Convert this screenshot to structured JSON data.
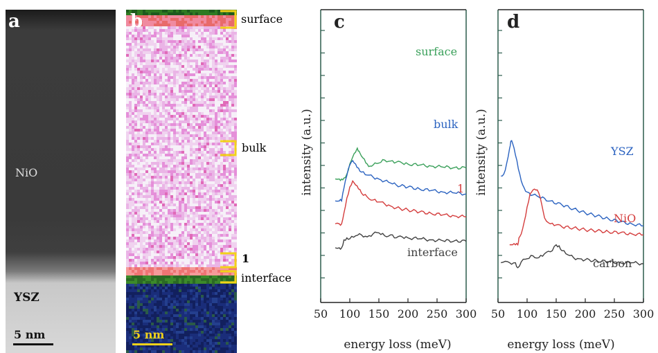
{
  "panels": {
    "a": {
      "letter": "a",
      "labels": {
        "nio": "NiO",
        "ysz": "YSZ",
        "scale": "5 nm"
      }
    },
    "b": {
      "letter": "b",
      "scale": "5 nm",
      "markers": {
        "surface": "surface",
        "bulk": "bulk",
        "one": "1",
        "interface": "interface"
      }
    },
    "c": {
      "letter": "c",
      "curve_labels": {
        "surface": "surface",
        "bulk": "bulk",
        "one": "1",
        "interface": "interface"
      }
    },
    "d": {
      "letter": "d",
      "curve_labels": {
        "ysz": "YSZ",
        "nio": "NiO",
        "carbon": "carbon"
      }
    }
  },
  "axes": {
    "ylabel": "intensity (a.u.)",
    "xlabel": "energy loss (meV)"
  },
  "colors": {
    "surface": "#3aa05a",
    "bulk": "#2a62c0",
    "one": "#d43c3c",
    "interface": "#404040",
    "marker": "#f2d21a",
    "axis": "#2c5c4c"
  },
  "chart_data": [
    {
      "type": "line",
      "panel": "c",
      "xlabel": "energy loss (meV)",
      "ylabel": "intensity (a.u.)",
      "xlim": [
        50,
        300
      ],
      "xticks": [
        50,
        100,
        150,
        200,
        250,
        300
      ],
      "series": [
        {
          "name": "surface",
          "x": [
            75,
            82,
            86,
            90,
            95,
            100,
            105,
            110,
            113,
            116,
            120,
            125,
            130,
            135,
            140,
            150,
            160,
            170,
            180,
            190,
            200,
            220,
            240,
            260,
            280,
            300
          ],
          "y": [
            0.88,
            0.88,
            0.88,
            0.9,
            0.98,
            1.18,
            1.32,
            1.42,
            1.5,
            1.44,
            1.34,
            1.28,
            1.18,
            1.14,
            1.16,
            1.2,
            1.26,
            1.24,
            1.22,
            1.2,
            1.18,
            1.16,
            1.14,
            1.12,
            1.11,
            1.1
          ]
        },
        {
          "name": "bulk",
          "x": [
            75,
            82,
            86,
            90,
            95,
            100,
            105,
            110,
            115,
            120,
            130,
            140,
            150,
            160,
            170,
            180,
            200,
            220,
            240,
            260,
            280,
            300
          ],
          "y": [
            0.44,
            0.44,
            0.44,
            0.7,
            0.95,
            1.16,
            1.25,
            1.18,
            1.1,
            1.02,
            0.96,
            0.92,
            0.88,
            0.84,
            0.8,
            0.76,
            0.72,
            0.68,
            0.65,
            0.62,
            0.6,
            0.58
          ]
        },
        {
          "name": "1",
          "x": [
            75,
            82,
            86,
            90,
            95,
            100,
            105,
            110,
            115,
            120,
            130,
            140,
            150,
            160,
            170,
            180,
            200,
            220,
            240,
            260,
            280,
            300
          ],
          "y": [
            -0.02,
            -0.02,
            -0.02,
            0.2,
            0.5,
            0.72,
            0.84,
            0.76,
            0.68,
            0.6,
            0.52,
            0.46,
            0.42,
            0.38,
            0.34,
            0.3,
            0.26,
            0.22,
            0.19,
            0.16,
            0.14,
            0.12
          ]
        },
        {
          "name": "interface",
          "x": [
            75,
            82,
            86,
            90,
            95,
            100,
            110,
            120,
            130,
            140,
            150,
            160,
            170,
            180,
            190,
            200,
            220,
            240,
            260,
            280,
            300
          ],
          "y": [
            -0.5,
            -0.5,
            -0.5,
            -0.34,
            -0.3,
            -0.32,
            -0.26,
            -0.24,
            -0.28,
            -0.22,
            -0.2,
            -0.26,
            -0.24,
            -0.3,
            -0.28,
            -0.3,
            -0.32,
            -0.34,
            -0.36,
            -0.36,
            -0.37
          ]
        }
      ]
    },
    {
      "type": "line",
      "panel": "d",
      "xlabel": "energy loss (meV)",
      "ylabel": "intensity (a.u.)",
      "xlim": [
        50,
        300
      ],
      "xticks": [
        50,
        100,
        150,
        200,
        250,
        300
      ],
      "series": [
        {
          "name": "YSZ",
          "x": [
            55,
            60,
            65,
            70,
            72,
            75,
            80,
            85,
            90,
            95,
            100,
            110,
            120,
            140,
            160,
            180,
            200,
            220,
            240,
            260,
            280,
            300
          ],
          "y": [
            0.94,
            0.98,
            1.2,
            1.5,
            1.64,
            1.6,
            1.36,
            1.08,
            0.84,
            0.7,
            0.62,
            0.56,
            0.52,
            0.44,
            0.36,
            0.28,
            0.2,
            0.14,
            0.08,
            0.02,
            -0.02,
            -0.06
          ]
        },
        {
          "name": "NiO",
          "x": [
            70,
            75,
            80,
            84,
            86,
            90,
            95,
            100,
            105,
            110,
            115,
            120,
            125,
            130,
            140,
            150,
            160,
            180,
            200,
            220,
            240,
            260,
            280,
            300
          ],
          "y": [
            -0.44,
            -0.44,
            -0.44,
            -0.44,
            -0.3,
            -0.22,
            0.02,
            0.32,
            0.58,
            0.66,
            0.66,
            0.6,
            0.38,
            0.1,
            -0.02,
            -0.04,
            -0.08,
            -0.1,
            -0.14,
            -0.16,
            -0.18,
            -0.2,
            -0.22,
            -0.24
          ]
        },
        {
          "name": "carbon",
          "x": [
            55,
            70,
            80,
            84,
            90,
            100,
            110,
            120,
            130,
            140,
            150,
            155,
            160,
            170,
            180,
            190,
            200,
            220,
            240,
            260,
            280,
            300
          ],
          "y": [
            -0.8,
            -0.8,
            -0.8,
            -0.9,
            -0.78,
            -0.72,
            -0.66,
            -0.7,
            -0.62,
            -0.58,
            -0.44,
            -0.46,
            -0.56,
            -0.64,
            -0.7,
            -0.72,
            -0.74,
            -0.76,
            -0.78,
            -0.8,
            -0.8,
            -0.82
          ]
        }
      ]
    }
  ]
}
